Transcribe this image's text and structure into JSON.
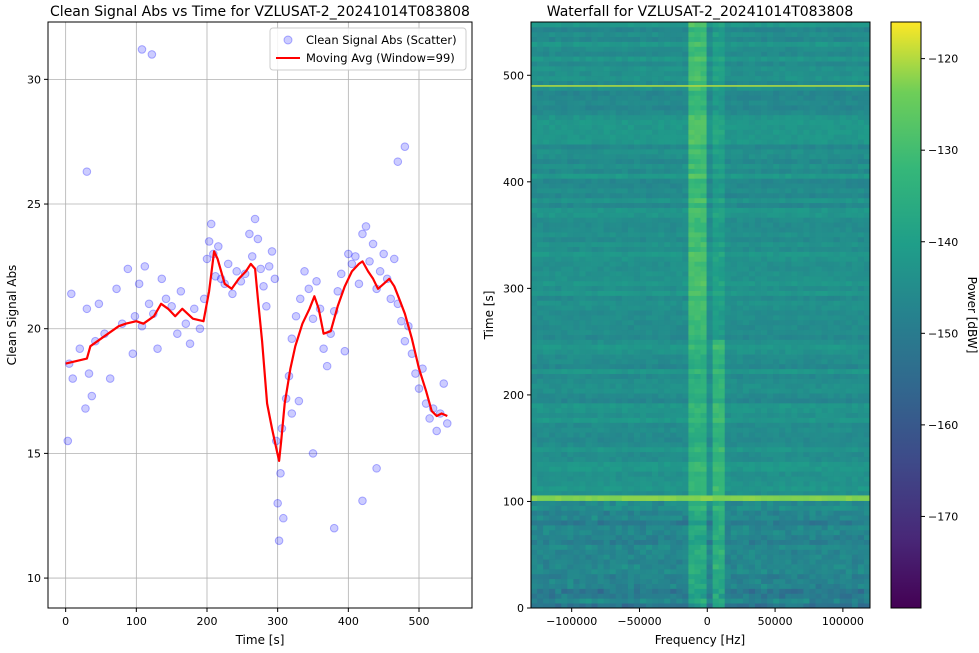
{
  "chart_data": [
    {
      "type": "scatter",
      "title": "Clean Signal Abs vs Time for VZLUSAT-2_20241014T083808",
      "xlabel": "Time [s]",
      "ylabel": "Clean Signal Abs",
      "xlim": [
        -25,
        575
      ],
      "ylim": [
        8.8,
        32.3
      ],
      "xticks": [
        0,
        100,
        200,
        300,
        400,
        500
      ],
      "yticks": [
        10,
        15,
        20,
        25,
        30
      ],
      "grid": true,
      "legend_position": "top-right",
      "series": [
        {
          "name": "Clean Signal Abs (Scatter)",
          "kind": "scatter",
          "color": "#0000ff",
          "x": [
            3,
            5,
            8,
            10,
            20,
            28,
            30,
            33,
            37,
            42,
            47,
            55,
            63,
            72,
            80,
            88,
            95,
            98,
            104,
            108,
            112,
            118,
            124,
            130,
            136,
            142,
            150,
            158,
            163,
            170,
            176,
            182,
            190,
            196,
            200,
            203,
            206,
            209,
            212,
            216,
            220,
            225,
            230,
            236,
            242,
            248,
            254,
            260,
            264,
            268,
            272,
            276,
            280,
            284,
            288,
            292,
            296,
            298,
            300,
            302,
            304,
            306,
            308,
            312,
            316,
            320,
            326,
            332,
            338,
            344,
            350,
            355,
            360,
            365,
            370,
            375,
            380,
            385,
            390,
            395,
            400,
            405,
            410,
            415,
            420,
            425,
            430,
            435,
            440,
            445,
            450,
            455,
            460,
            465,
            470,
            475,
            480,
            485,
            490,
            495,
            500,
            505,
            510,
            515,
            520,
            525,
            530,
            535,
            540,
            108,
            122,
            30,
            470,
            480,
            350,
            380,
            420,
            440,
            330,
            320
          ],
          "y": [
            15.5,
            18.6,
            21.4,
            18.0,
            19.2,
            16.8,
            20.8,
            18.2,
            17.3,
            19.5,
            21.0,
            19.8,
            18.0,
            21.6,
            20.2,
            22.4,
            19.0,
            20.5,
            21.8,
            20.1,
            22.5,
            21.0,
            20.6,
            19.2,
            22.0,
            21.2,
            20.9,
            19.8,
            21.5,
            20.2,
            19.4,
            20.8,
            20.0,
            21.2,
            22.8,
            23.5,
            24.2,
            23.0,
            22.1,
            23.3,
            22.0,
            21.8,
            22.6,
            21.4,
            22.3,
            21.9,
            22.2,
            23.8,
            22.9,
            24.4,
            23.6,
            22.4,
            21.7,
            20.9,
            22.5,
            23.1,
            22.0,
            15.5,
            13.0,
            11.5,
            14.2,
            16.0,
            12.4,
            17.2,
            18.1,
            19.6,
            20.5,
            21.2,
            22.3,
            21.6,
            20.4,
            21.9,
            20.8,
            19.2,
            18.5,
            19.8,
            20.7,
            21.5,
            22.2,
            19.1,
            23.0,
            22.6,
            22.9,
            21.8,
            23.8,
            24.1,
            22.7,
            23.4,
            21.6,
            22.3,
            23.0,
            22.0,
            21.2,
            22.8,
            21.0,
            20.3,
            19.5,
            20.1,
            19.0,
            18.2,
            17.6,
            18.4,
            17.0,
            16.4,
            16.8,
            15.9,
            16.6,
            17.8,
            16.2,
            31.2,
            31.0,
            26.3,
            26.7,
            27.3,
            15.0,
            12.0,
            13.1,
            14.4,
            17.1,
            16.6
          ]
        },
        {
          "name": "Moving Avg (Window=99)",
          "kind": "line",
          "color": "#ff0000",
          "x": [
            0,
            15,
            30,
            35,
            55,
            75,
            85,
            100,
            110,
            125,
            135,
            145,
            155,
            165,
            180,
            195,
            203,
            210,
            215,
            225,
            235,
            245,
            255,
            262,
            268,
            272,
            278,
            285,
            292,
            298,
            302,
            305,
            310,
            318,
            325,
            335,
            345,
            352,
            358,
            365,
            375,
            385,
            395,
            405,
            415,
            420,
            428,
            435,
            442,
            450,
            458,
            465,
            472,
            480,
            490,
            500,
            510,
            518,
            525,
            532,
            540
          ],
          "y": [
            18.6,
            18.7,
            18.8,
            19.3,
            19.7,
            20.1,
            20.2,
            20.3,
            20.2,
            20.5,
            21.0,
            20.8,
            20.5,
            20.8,
            20.4,
            20.3,
            21.5,
            23.1,
            22.8,
            21.8,
            21.6,
            22.0,
            22.3,
            22.6,
            22.4,
            21.2,
            19.5,
            17.0,
            16.0,
            15.2,
            14.7,
            15.5,
            17.0,
            18.4,
            19.3,
            20.2,
            20.8,
            21.3,
            20.8,
            19.8,
            19.9,
            20.9,
            21.7,
            22.3,
            22.6,
            22.7,
            22.3,
            22.0,
            21.6,
            21.8,
            22.0,
            21.7,
            21.2,
            20.6,
            19.6,
            18.4,
            17.5,
            16.7,
            16.5,
            16.6,
            16.5
          ]
        }
      ]
    },
    {
      "type": "heatmap",
      "title": "Waterfall for VZLUSAT-2_20241014T083808",
      "xlabel": "Frequency [Hz]",
      "ylabel": "Time [s]",
      "xlim": [
        -130000,
        120000
      ],
      "ylim": [
        0,
        550
      ],
      "xticks": [
        -100000,
        -50000,
        0,
        50000,
        100000
      ],
      "xtick_labels": [
        "−100000",
        "−50000",
        "0",
        "50000",
        "100000"
      ],
      "yticks": [
        0,
        100,
        200,
        300,
        400,
        500
      ],
      "colormap": "viridis",
      "colorbar": {
        "label": "Power [dBW]",
        "range": [
          -180,
          -116
        ],
        "ticks": [
          -170,
          -160,
          -150,
          -140,
          -130,
          -120
        ],
        "tick_labels": [
          "−170",
          "−160",
          "−150",
          "−140",
          "−130",
          "−120"
        ]
      },
      "features": {
        "bright_band_hz": [
          -12000,
          -2000
        ],
        "secondary_band_hz": [
          3000,
          13000
        ],
        "bright_row_time_s": [
          101,
          106
        ],
        "thin_row_time_s": 490
      }
    }
  ]
}
